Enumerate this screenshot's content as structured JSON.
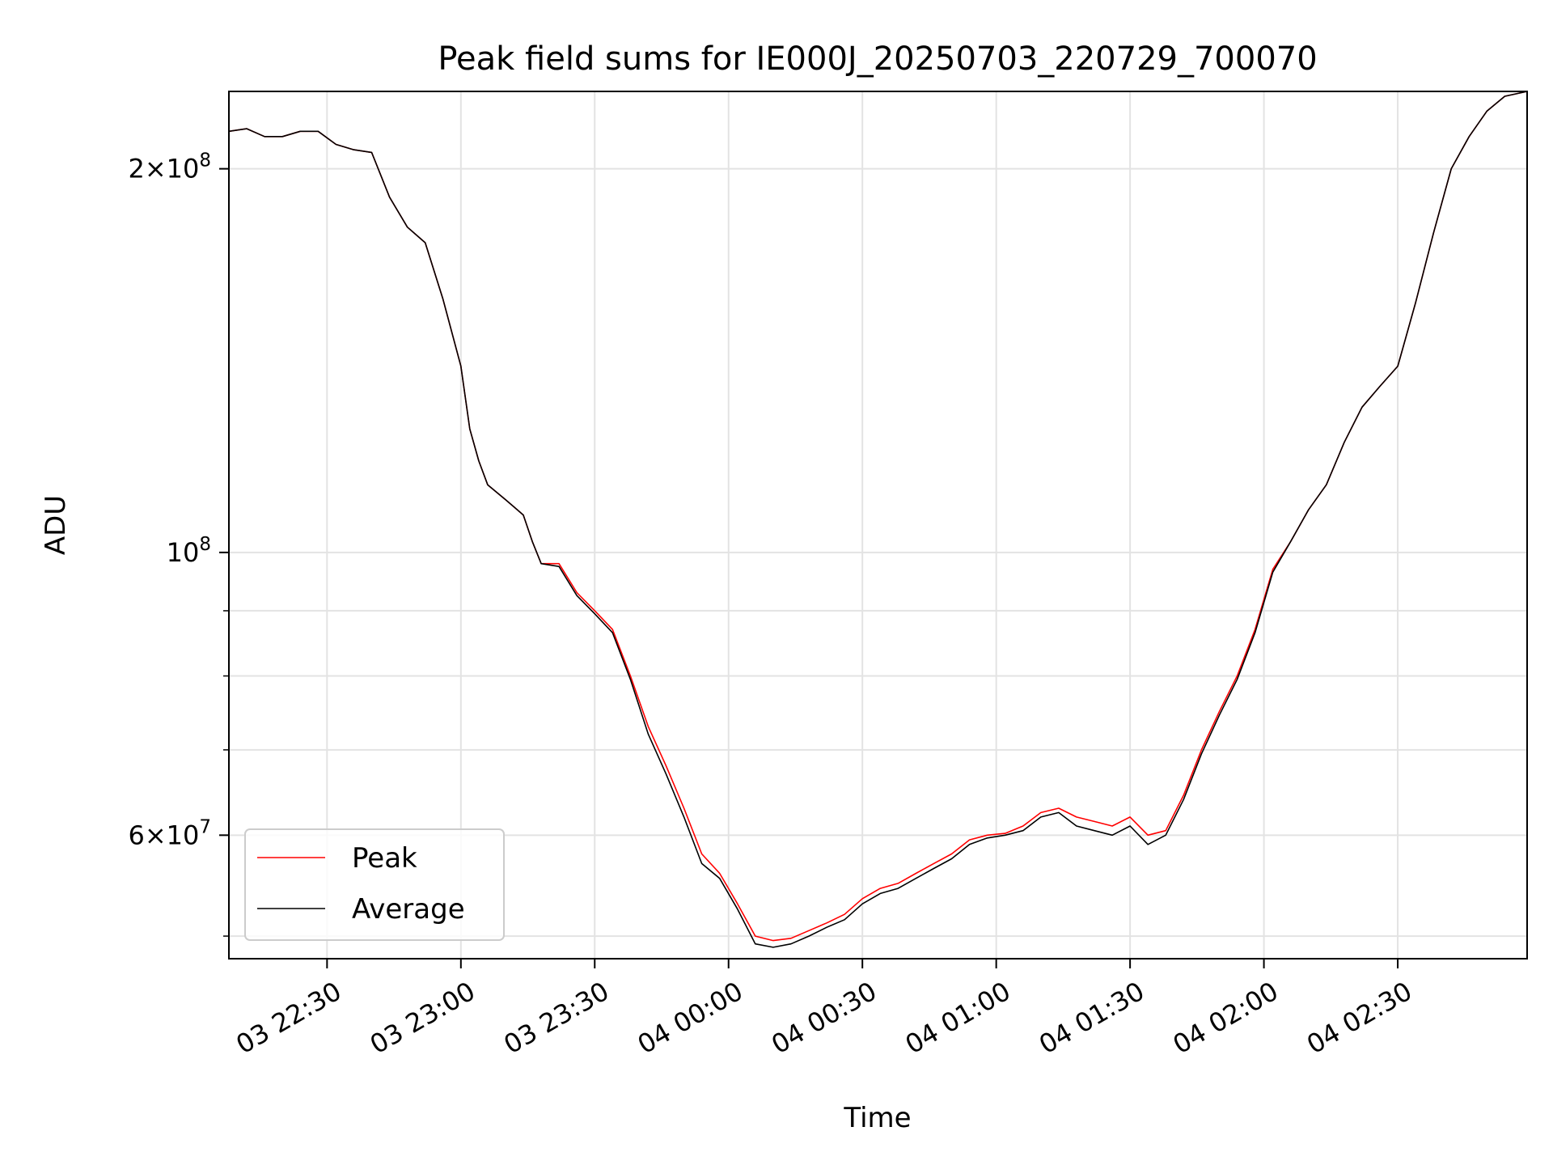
{
  "chart_data": {
    "type": "line",
    "title": "Peak field sums for IE000J_20250703_220729_700070",
    "xlabel": "Time",
    "ylabel": "ADU",
    "y_scale": "log",
    "ylim": [
      48000000,
      230000000
    ],
    "xlim": [
      "2025-07-03 22:08",
      "2025-07-04 02:59"
    ],
    "x_ticks": [
      {
        "t": "2025-07-03 22:30",
        "label": "03 22:30"
      },
      {
        "t": "2025-07-03 23:00",
        "label": "03 23:00"
      },
      {
        "t": "2025-07-03 23:30",
        "label": "03 23:30"
      },
      {
        "t": "2025-07-04 00:00",
        "label": "04 00:00"
      },
      {
        "t": "2025-07-04 00:30",
        "label": "04 00:30"
      },
      {
        "t": "2025-07-04 01:00",
        "label": "04 01:00"
      },
      {
        "t": "2025-07-04 01:30",
        "label": "04 01:30"
      },
      {
        "t": "2025-07-04 02:00",
        "label": "04 02:00"
      },
      {
        "t": "2025-07-04 02:30",
        "label": "04 02:30"
      }
    ],
    "y_ticks_major": [
      {
        "value": 200000000,
        "mantissa": "2",
        "exponent": "8"
      },
      {
        "value": 100000000,
        "mantissa": "",
        "exponent": "8"
      },
      {
        "value": 60000000,
        "mantissa": "6",
        "exponent": "7"
      }
    ],
    "y_ticks_minor": [
      50000000,
      70000000,
      80000000,
      90000000
    ],
    "grid": true,
    "legend_position": "lower-left",
    "series": [
      {
        "name": "Peak",
        "color": "#ff0000",
        "x": [
          "2025-07-03 22:08",
          "2025-07-03 22:12",
          "2025-07-03 22:16",
          "2025-07-03 22:20",
          "2025-07-03 22:24",
          "2025-07-03 22:28",
          "2025-07-03 22:32",
          "2025-07-03 22:36",
          "2025-07-03 22:40",
          "2025-07-03 22:44",
          "2025-07-03 22:48",
          "2025-07-03 22:52",
          "2025-07-03 22:56",
          "2025-07-03 23:00",
          "2025-07-03 23:02",
          "2025-07-03 23:04",
          "2025-07-03 23:06",
          "2025-07-03 23:10",
          "2025-07-03 23:14",
          "2025-07-03 23:16",
          "2025-07-03 23:18",
          "2025-07-03 23:22",
          "2025-07-03 23:26",
          "2025-07-03 23:30",
          "2025-07-03 23:34",
          "2025-07-03 23:38",
          "2025-07-03 23:42",
          "2025-07-03 23:46",
          "2025-07-03 23:50",
          "2025-07-03 23:54",
          "2025-07-03 23:58",
          "2025-07-04 00:02",
          "2025-07-04 00:06",
          "2025-07-04 00:10",
          "2025-07-04 00:14",
          "2025-07-04 00:18",
          "2025-07-04 00:22",
          "2025-07-04 00:26",
          "2025-07-04 00:30",
          "2025-07-04 00:34",
          "2025-07-04 00:38",
          "2025-07-04 00:42",
          "2025-07-04 00:46",
          "2025-07-04 00:50",
          "2025-07-04 00:54",
          "2025-07-04 00:58",
          "2025-07-04 01:02",
          "2025-07-04 01:06",
          "2025-07-04 01:10",
          "2025-07-04 01:14",
          "2025-07-04 01:18",
          "2025-07-04 01:22",
          "2025-07-04 01:26",
          "2025-07-04 01:30",
          "2025-07-04 01:34",
          "2025-07-04 01:38",
          "2025-07-04 01:42",
          "2025-07-04 01:46",
          "2025-07-04 01:50",
          "2025-07-04 01:54",
          "2025-07-04 01:58",
          "2025-07-04 02:02",
          "2025-07-04 02:06",
          "2025-07-04 02:10",
          "2025-07-04 02:14",
          "2025-07-04 02:18",
          "2025-07-04 02:22",
          "2025-07-04 02:26",
          "2025-07-04 02:30",
          "2025-07-04 02:34",
          "2025-07-04 02:38",
          "2025-07-04 02:42",
          "2025-07-04 02:46",
          "2025-07-04 02:50",
          "2025-07-04 02:54",
          "2025-07-04 02:59"
        ],
        "y": [
          214000000,
          215000000,
          212000000,
          212000000,
          214000000,
          214000000,
          209000000,
          207000000,
          206000000,
          190000000,
          180000000,
          175000000,
          158000000,
          140000000,
          125000000,
          118000000,
          113000000,
          110000000,
          107000000,
          102000000,
          98000000,
          98000000,
          93000000,
          90000000,
          87000000,
          80000000,
          73000000,
          68000000,
          63000000,
          58000000,
          56000000,
          53000000,
          50000000,
          49600000,
          49800000,
          50500000,
          51200000,
          52000000,
          53500000,
          54500000,
          55000000,
          56000000,
          57000000,
          58000000,
          59500000,
          60000000,
          60200000,
          61000000,
          62500000,
          63000000,
          62000000,
          61500000,
          61000000,
          62000000,
          60000000,
          60500000,
          64500000,
          70000000,
          75000000,
          80000000,
          87000000,
          97000000,
          102000000,
          108000000,
          113000000,
          122000000,
          130000000,
          135000000,
          140000000,
          157000000,
          178000000,
          200000000,
          212000000,
          222000000,
          228000000,
          230000000
        ]
      },
      {
        "name": "Average",
        "color": "#000000",
        "x": [
          "2025-07-03 22:08",
          "2025-07-03 22:12",
          "2025-07-03 22:16",
          "2025-07-03 22:20",
          "2025-07-03 22:24",
          "2025-07-03 22:28",
          "2025-07-03 22:32",
          "2025-07-03 22:36",
          "2025-07-03 22:40",
          "2025-07-03 22:44",
          "2025-07-03 22:48",
          "2025-07-03 22:52",
          "2025-07-03 22:56",
          "2025-07-03 23:00",
          "2025-07-03 23:02",
          "2025-07-03 23:04",
          "2025-07-03 23:06",
          "2025-07-03 23:10",
          "2025-07-03 23:14",
          "2025-07-03 23:16",
          "2025-07-03 23:18",
          "2025-07-03 23:22",
          "2025-07-03 23:26",
          "2025-07-03 23:30",
          "2025-07-03 23:34",
          "2025-07-03 23:38",
          "2025-07-03 23:42",
          "2025-07-03 23:46",
          "2025-07-03 23:50",
          "2025-07-03 23:54",
          "2025-07-03 23:58",
          "2025-07-04 00:02",
          "2025-07-04 00:06",
          "2025-07-04 00:10",
          "2025-07-04 00:14",
          "2025-07-04 00:18",
          "2025-07-04 00:22",
          "2025-07-04 00:26",
          "2025-07-04 00:30",
          "2025-07-04 00:34",
          "2025-07-04 00:38",
          "2025-07-04 00:42",
          "2025-07-04 00:46",
          "2025-07-04 00:50",
          "2025-07-04 00:54",
          "2025-07-04 00:58",
          "2025-07-04 01:02",
          "2025-07-04 01:06",
          "2025-07-04 01:10",
          "2025-07-04 01:14",
          "2025-07-04 01:18",
          "2025-07-04 01:22",
          "2025-07-04 01:26",
          "2025-07-04 01:30",
          "2025-07-04 01:34",
          "2025-07-04 01:38",
          "2025-07-04 01:42",
          "2025-07-04 01:46",
          "2025-07-04 01:50",
          "2025-07-04 01:54",
          "2025-07-04 01:58",
          "2025-07-04 02:02",
          "2025-07-04 02:06",
          "2025-07-04 02:10",
          "2025-07-04 02:14",
          "2025-07-04 02:18",
          "2025-07-04 02:22",
          "2025-07-04 02:26",
          "2025-07-04 02:30",
          "2025-07-04 02:34",
          "2025-07-04 02:38",
          "2025-07-04 02:42",
          "2025-07-04 02:46",
          "2025-07-04 02:50",
          "2025-07-04 02:54",
          "2025-07-04 02:59"
        ],
        "y": [
          214000000,
          215000000,
          212000000,
          212000000,
          214000000,
          214000000,
          209000000,
          207000000,
          206000000,
          190000000,
          180000000,
          175000000,
          158000000,
          140000000,
          125000000,
          118000000,
          113000000,
          110000000,
          107000000,
          102000000,
          98000000,
          97500000,
          92500000,
          89500000,
          86500000,
          79500000,
          72000000,
          67000000,
          62000000,
          57000000,
          55500000,
          52500000,
          49300000,
          49000000,
          49300000,
          50000000,
          50800000,
          51500000,
          53000000,
          54000000,
          54500000,
          55500000,
          56500000,
          57500000,
          59000000,
          59700000,
          60000000,
          60500000,
          62000000,
          62500000,
          61000000,
          60500000,
          60000000,
          61000000,
          59000000,
          60000000,
          64000000,
          69500000,
          74500000,
          79500000,
          86500000,
          96500000,
          102000000,
          108000000,
          113000000,
          122000000,
          130000000,
          135000000,
          140000000,
          157000000,
          178000000,
          200000000,
          212000000,
          222000000,
          228000000,
          230000000
        ]
      }
    ]
  }
}
